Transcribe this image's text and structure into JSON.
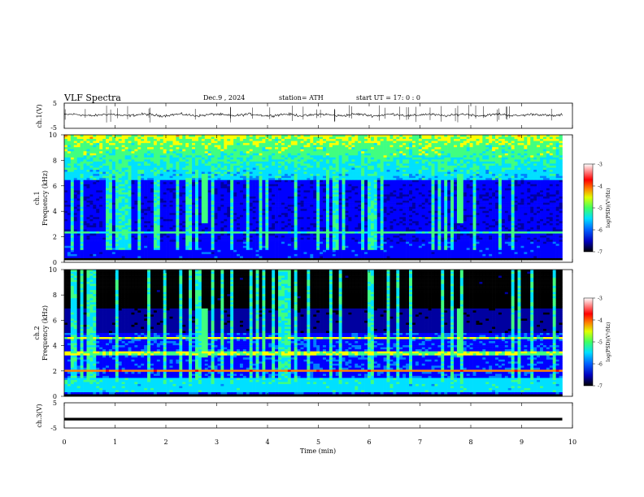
{
  "header": {
    "title": "VLF  Spectra",
    "date": "Dec.9  , 2024",
    "station": "station= ATH",
    "start": "start  UT  =    17: 0   : 0"
  },
  "chart_data": [
    {
      "type": "line",
      "panel": "ch1-waveform",
      "ylabel": "ch.1(V)",
      "yticks": [
        "5",
        "-5"
      ],
      "ylim": [
        -5,
        5
      ],
      "xlim": [
        0,
        10
      ],
      "data_end_min": 9.8,
      "series": [
        {
          "color": "#000000",
          "mean": 0.3,
          "amplitude": 1.5
        }
      ]
    },
    {
      "type": "heatmap",
      "panel": "ch1-spectrogram",
      "ylabel": "ch.1\nFrequency  (kHz)",
      "ylabel_lines": [
        "ch.1",
        "Frequency  (kHz)"
      ],
      "yticks": [
        "0",
        "2",
        "4",
        "6",
        "8",
        "10"
      ],
      "ylim": [
        0,
        10
      ],
      "xlim": [
        0,
        10
      ],
      "data_end_min": 9.8,
      "features": {
        "strong_band_khz": [
          2.2,
          2.4
        ],
        "bright_burst_min": [
          2.75,
          7.8
        ],
        "low_freq_gap_khz": [
          0,
          0.4
        ]
      },
      "colorbar": {
        "label": "log(PSD)(V²/Hz)",
        "ticks": [
          "-3",
          "-4",
          "-5",
          "-6",
          "-7"
        ],
        "range": [
          -7,
          -3
        ]
      }
    },
    {
      "type": "heatmap",
      "panel": "ch2-spectrogram",
      "ylabel": "ch.2\nFrequency  (kHz)",
      "ylabel_lines": [
        "ch.2",
        "Frequency  (kHz)"
      ],
      "yticks": [
        "0",
        "2",
        "4",
        "6",
        "8",
        "10"
      ],
      "ylim": [
        0,
        10
      ],
      "xlim": [
        0,
        10
      ],
      "data_end_min": 9.8,
      "features": {
        "strong_band_khz": [
          1.9,
          2.1
        ],
        "secondary_bands_khz": [
          3.4,
          4.6
        ],
        "bright_burst_min": [
          2.75,
          7.8
        ],
        "low_freq_gap_khz": [
          0,
          0.2
        ]
      },
      "colorbar": {
        "label": "log(PSD)(V²/Hz)",
        "ticks": [
          "-3",
          "-4",
          "-5",
          "-6",
          "-7"
        ],
        "range": [
          -7,
          -3
        ]
      }
    },
    {
      "type": "line",
      "panel": "ch3-waveform",
      "ylabel": "ch.3(V)",
      "yticks": [
        "5",
        "-5"
      ],
      "ylim": [
        -5,
        5
      ],
      "xlim": [
        0,
        10
      ],
      "data_end_min": 9.8,
      "series": [
        {
          "color": "#000000",
          "mean": -1.5,
          "amplitude": 0.2
        }
      ]
    }
  ],
  "xaxis": {
    "label": "Time  (min)",
    "ticks": [
      "0",
      "1",
      "2",
      "3",
      "4",
      "5",
      "6",
      "7",
      "8",
      "9",
      "10"
    ]
  },
  "colormap": [
    "#000000",
    "#0000a0",
    "#0000ff",
    "#0080ff",
    "#00e0ff",
    "#40ff80",
    "#ffff00",
    "#ff8000",
    "#ff0000",
    "#ffffff"
  ]
}
